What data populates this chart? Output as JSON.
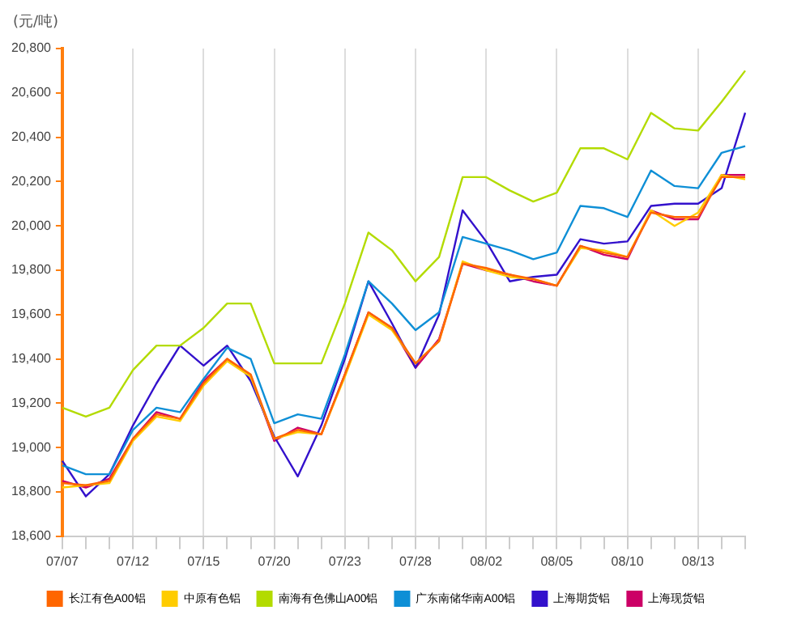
{
  "chart_data": {
    "type": "line",
    "ylabel": "(元/吨)",
    "categories": [
      "07/07",
      null,
      null,
      "07/12",
      null,
      null,
      "07/15",
      null,
      null,
      "07/20",
      null,
      null,
      "07/23",
      null,
      null,
      "07/28",
      null,
      null,
      "08/02",
      null,
      null,
      "08/05",
      null,
      null,
      "08/10",
      null,
      null,
      "08/13",
      null,
      null
    ],
    "series": [
      {
        "name": "长江有色A00铝",
        "color": "#ff6600",
        "values": [
          18840,
          18830,
          18850,
          19040,
          19150,
          19130,
          19290,
          19400,
          19330,
          19040,
          19080,
          19060,
          19330,
          19610,
          19540,
          19380,
          19480,
          19830,
          19810,
          19780,
          19760,
          19730,
          19910,
          19880,
          19860,
          20060,
          20040,
          20040,
          20220,
          20220
        ]
      },
      {
        "name": "中原有色铝",
        "color": "#ffcc00",
        "values": [
          18820,
          18830,
          18840,
          19030,
          19140,
          19120,
          19280,
          19390,
          19320,
          19040,
          19070,
          19060,
          19320,
          19600,
          19530,
          19380,
          19480,
          19840,
          19800,
          19770,
          19760,
          19730,
          19900,
          19890,
          19860,
          20070,
          20000,
          20060,
          20230,
          20210
        ]
      },
      {
        "name": "南海有色佛山A00铝",
        "color": "#b3db00",
        "values": [
          19180,
          19140,
          19180,
          19350,
          19460,
          19460,
          19540,
          19650,
          19650,
          19380,
          19380,
          19380,
          19650,
          19970,
          19890,
          19750,
          19860,
          20220,
          20220,
          20160,
          20110,
          20150,
          20350,
          20350,
          20300,
          20510,
          20440,
          20430,
          20560,
          20700
        ]
      },
      {
        "name": "广东南储华南A00铝",
        "color": "#0e8fd6",
        "values": [
          18920,
          18880,
          18880,
          19080,
          19180,
          19160,
          19310,
          19450,
          19400,
          19110,
          19150,
          19130,
          19420,
          19750,
          19650,
          19530,
          19610,
          19950,
          19920,
          19890,
          19850,
          19880,
          20090,
          20080,
          20040,
          20250,
          20180,
          20170,
          20330,
          20360
        ]
      },
      {
        "name": "上海期货铝",
        "color": "#3311cc",
        "values": [
          18940,
          18780,
          18880,
          19100,
          19290,
          19460,
          19370,
          19460,
          19300,
          19050,
          18870,
          19100,
          19400,
          19750,
          19560,
          19360,
          19600,
          20070,
          19930,
          19750,
          19770,
          19780,
          19940,
          19920,
          19930,
          20090,
          20100,
          20100,
          20170,
          20510
        ]
      },
      {
        "name": "上海现货铝",
        "color": "#cc0066",
        "values": [
          18850,
          18820,
          18860,
          19040,
          19160,
          19130,
          19300,
          19400,
          19320,
          19030,
          19090,
          19060,
          19330,
          19610,
          19540,
          19360,
          19490,
          19830,
          19800,
          19780,
          19750,
          19730,
          19910,
          19870,
          19850,
          20070,
          20030,
          20030,
          20230,
          20230
        ]
      }
    ],
    "ylim": [
      18600,
      20800
    ],
    "yticks": [
      {
        "value": 18600,
        "label": "18,600"
      },
      {
        "value": 18800,
        "label": "18,800"
      },
      {
        "value": 19000,
        "label": "19,000"
      },
      {
        "value": 19200,
        "label": "19,200"
      },
      {
        "value": 19400,
        "label": "19,400"
      },
      {
        "value": 19600,
        "label": "19,600"
      },
      {
        "value": 19800,
        "label": "19,800"
      },
      {
        "value": 20000,
        "label": "20,000"
      },
      {
        "value": 20200,
        "label": "20,200"
      },
      {
        "value": 20400,
        "label": "20,400"
      },
      {
        "value": 20600,
        "label": "20,600"
      },
      {
        "value": 20800,
        "label": "20,800"
      }
    ],
    "grid": "x",
    "legend": "bottom",
    "marker": "none",
    "line_style": "solid"
  }
}
